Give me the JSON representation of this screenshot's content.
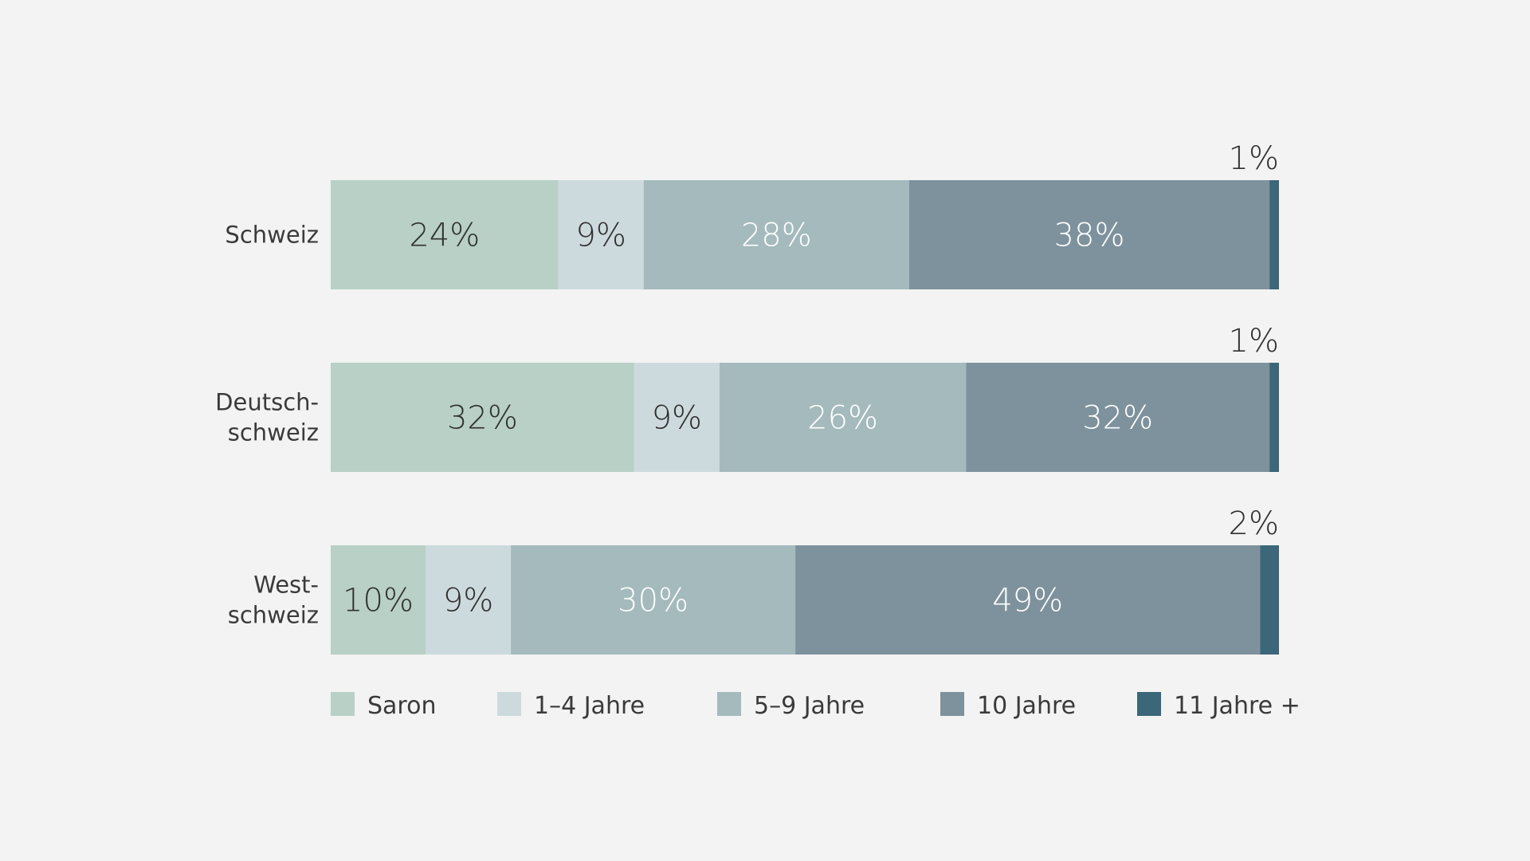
{
  "chart_data": {
    "type": "bar",
    "orientation": "horizontal",
    "stacked": true,
    "categories": [
      [
        "Schweiz"
      ],
      [
        "Deutsch-",
        "schweiz"
      ],
      [
        "West-",
        "schweiz"
      ]
    ],
    "series": [
      {
        "name": "Saron",
        "color": "#b8d0c5",
        "label_color": "#2f2f2f",
        "values": [
          24,
          32,
          10
        ]
      },
      {
        "name": "1–4 Jahre",
        "color": "#cddadd",
        "label_color": "#2f2f2f",
        "values": [
          9,
          9,
          9
        ]
      },
      {
        "name": "5–9 Jahre",
        "color": "#a4babd",
        "label_color": "#ffffff",
        "values": [
          28,
          26,
          30
        ]
      },
      {
        "name": "10 Jahre",
        "color": "#7e929d",
        "label_color": "#ffffff",
        "values": [
          38,
          32,
          49
        ]
      },
      {
        "name": "11 Jahre +",
        "color": "#3b6778",
        "label_color": "#2f2f2f",
        "values": [
          1,
          1,
          2
        ]
      }
    ],
    "value_suffix": "%",
    "xlim": [
      0,
      100
    ],
    "grid": false,
    "legend": "bottom",
    "title": "",
    "xlabel": "",
    "ylabel": ""
  }
}
